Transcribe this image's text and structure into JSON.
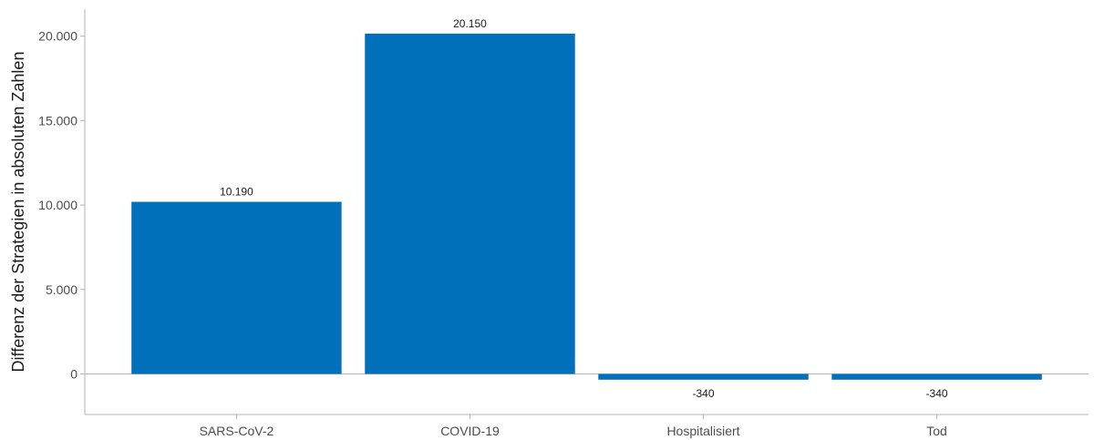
{
  "chart_data": {
    "type": "bar",
    "title": "",
    "xlabel": "",
    "ylabel": "Differenz der Strategien in absoluten Zahlen",
    "categories": [
      "SARS-CoV-2",
      "COVID-19",
      "Hospitalisiert",
      "Tod"
    ],
    "values": [
      10190,
      20150,
      -340,
      -340
    ],
    "value_labels": [
      "10.190",
      "20.150",
      "-340",
      "-340"
    ],
    "ylim": [
      -2400,
      21600
    ],
    "yticks": [
      0,
      5000,
      10000,
      15000,
      20000
    ],
    "ytick_labels": [
      "0",
      "5.000",
      "10.000",
      "15.000",
      "20.000"
    ],
    "grid": false,
    "legend": "none",
    "colors": {
      "bar": "#0070BA"
    }
  }
}
